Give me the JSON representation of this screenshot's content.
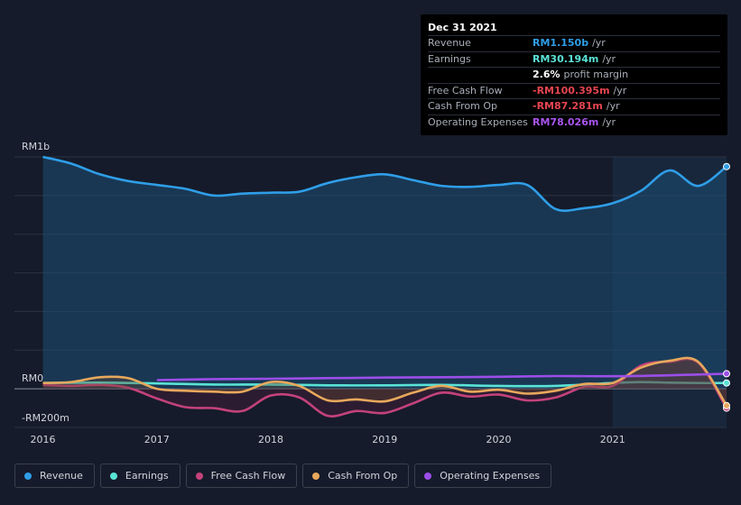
{
  "tooltip": {
    "date": "Dec 31 2021",
    "rows": [
      {
        "label": "Revenue",
        "value": "RM1.150b",
        "unit": "/yr",
        "color": "#2f9ee8"
      },
      {
        "label": "Earnings",
        "value": "RM30.194m",
        "unit": "/yr",
        "color": "#5ae3d6"
      },
      {
        "label": "",
        "value": "2.6%",
        "unit": "profit margin",
        "color": "#ffffff"
      },
      {
        "label": "Free Cash Flow",
        "value": "-RM100.395m",
        "unit": "/yr",
        "color": "#e64550"
      },
      {
        "label": "Cash From Op",
        "value": "-RM87.281m",
        "unit": "/yr",
        "color": "#e64550"
      },
      {
        "label": "Operating Expenses",
        "value": "RM78.026m",
        "unit": "/yr",
        "color": "#a955f0"
      }
    ]
  },
  "legend": [
    {
      "label": "Revenue",
      "color": "#2f9ee8"
    },
    {
      "label": "Earnings",
      "color": "#5ae3d6"
    },
    {
      "label": "Free Cash Flow",
      "color": "#c4427b"
    },
    {
      "label": "Cash From Op",
      "color": "#e8a85c"
    },
    {
      "label": "Operating Expenses",
      "color": "#9b4ee8"
    }
  ],
  "chart_data": {
    "type": "line",
    "ylim": [
      -200,
      1200
    ],
    "y_tick_labels": [
      {
        "label": "RM1b",
        "value": 1200
      },
      {
        "label": "RM0",
        "value": 0
      },
      {
        "label": "-RM200m",
        "value": -200
      }
    ],
    "x_tick_labels": [
      "2016",
      "2017",
      "2018",
      "2019",
      "2020",
      "2021"
    ],
    "x_ticks": [
      2016,
      2017,
      2018,
      2019,
      2020,
      2021
    ],
    "xlim": [
      2015.75,
      2022.0
    ],
    "forecast_start": 2021.0,
    "series": [
      {
        "name": "Revenue",
        "color": "#2f9ee8",
        "x": [
          2016.0,
          2016.25,
          2016.5,
          2016.75,
          2017.0,
          2017.25,
          2017.5,
          2017.75,
          2018.0,
          2018.25,
          2018.5,
          2018.75,
          2019.0,
          2019.25,
          2019.5,
          2019.75,
          2020.0,
          2020.25,
          2020.5,
          2020.75,
          2021.0,
          2021.25,
          2021.5,
          2021.75,
          2022.0
        ],
        "y": [
          1200,
          1165,
          1110,
          1075,
          1055,
          1035,
          1000,
          1010,
          1015,
          1020,
          1065,
          1095,
          1110,
          1080,
          1050,
          1045,
          1055,
          1055,
          930,
          935,
          960,
          1025,
          1130,
          1050,
          1150
        ]
      },
      {
        "name": "Earnings",
        "color": "#5ae3d6",
        "x": [
          2016.0,
          2016.5,
          2017.0,
          2017.5,
          2018.0,
          2018.5,
          2019.0,
          2019.5,
          2020.0,
          2020.5,
          2021.0,
          2021.25,
          2021.5,
          2021.75,
          2022.0
        ],
        "y": [
          30,
          32,
          28,
          22,
          22,
          18,
          18,
          20,
          15,
          15,
          30,
          35,
          32,
          30,
          30
        ]
      },
      {
        "name": "Free Cash Flow",
        "color": "#c4427b",
        "x": [
          2016.0,
          2016.25,
          2016.5,
          2016.75,
          2017.0,
          2017.25,
          2017.5,
          2017.75,
          2018.0,
          2018.25,
          2018.5,
          2018.75,
          2019.0,
          2019.25,
          2019.5,
          2019.75,
          2020.0,
          2020.25,
          2020.5,
          2020.75,
          2021.0,
          2021.25,
          2021.5,
          2021.75,
          2022.0
        ],
        "y": [
          20,
          15,
          20,
          5,
          -50,
          -95,
          -100,
          -115,
          -35,
          -45,
          -140,
          -115,
          -125,
          -75,
          -20,
          -40,
          -30,
          -60,
          -45,
          10,
          15,
          120,
          140,
          135,
          -100
        ]
      },
      {
        "name": "Cash From Op",
        "color": "#e8a85c",
        "x": [
          2016.0,
          2016.25,
          2016.5,
          2016.75,
          2017.0,
          2017.25,
          2017.5,
          2017.75,
          2018.0,
          2018.25,
          2018.5,
          2018.75,
          2019.0,
          2019.25,
          2019.5,
          2019.75,
          2020.0,
          2020.25,
          2020.5,
          2020.75,
          2021.0,
          2021.25,
          2021.5,
          2021.75,
          2022.0
        ],
        "y": [
          30,
          35,
          60,
          55,
          0,
          -10,
          -15,
          -15,
          35,
          15,
          -60,
          -55,
          -65,
          -20,
          15,
          -15,
          -5,
          -25,
          -10,
          25,
          30,
          110,
          145,
          140,
          -87
        ]
      },
      {
        "name": "Operating Expenses",
        "color": "#9b4ee8",
        "x": [
          2017.0,
          2017.5,
          2018.0,
          2018.5,
          2019.0,
          2019.5,
          2020.0,
          2020.5,
          2021.0,
          2021.5,
          2022.0
        ],
        "y": [
          45,
          50,
          52,
          55,
          58,
          60,
          62,
          66,
          65,
          70,
          78
        ]
      }
    ]
  }
}
